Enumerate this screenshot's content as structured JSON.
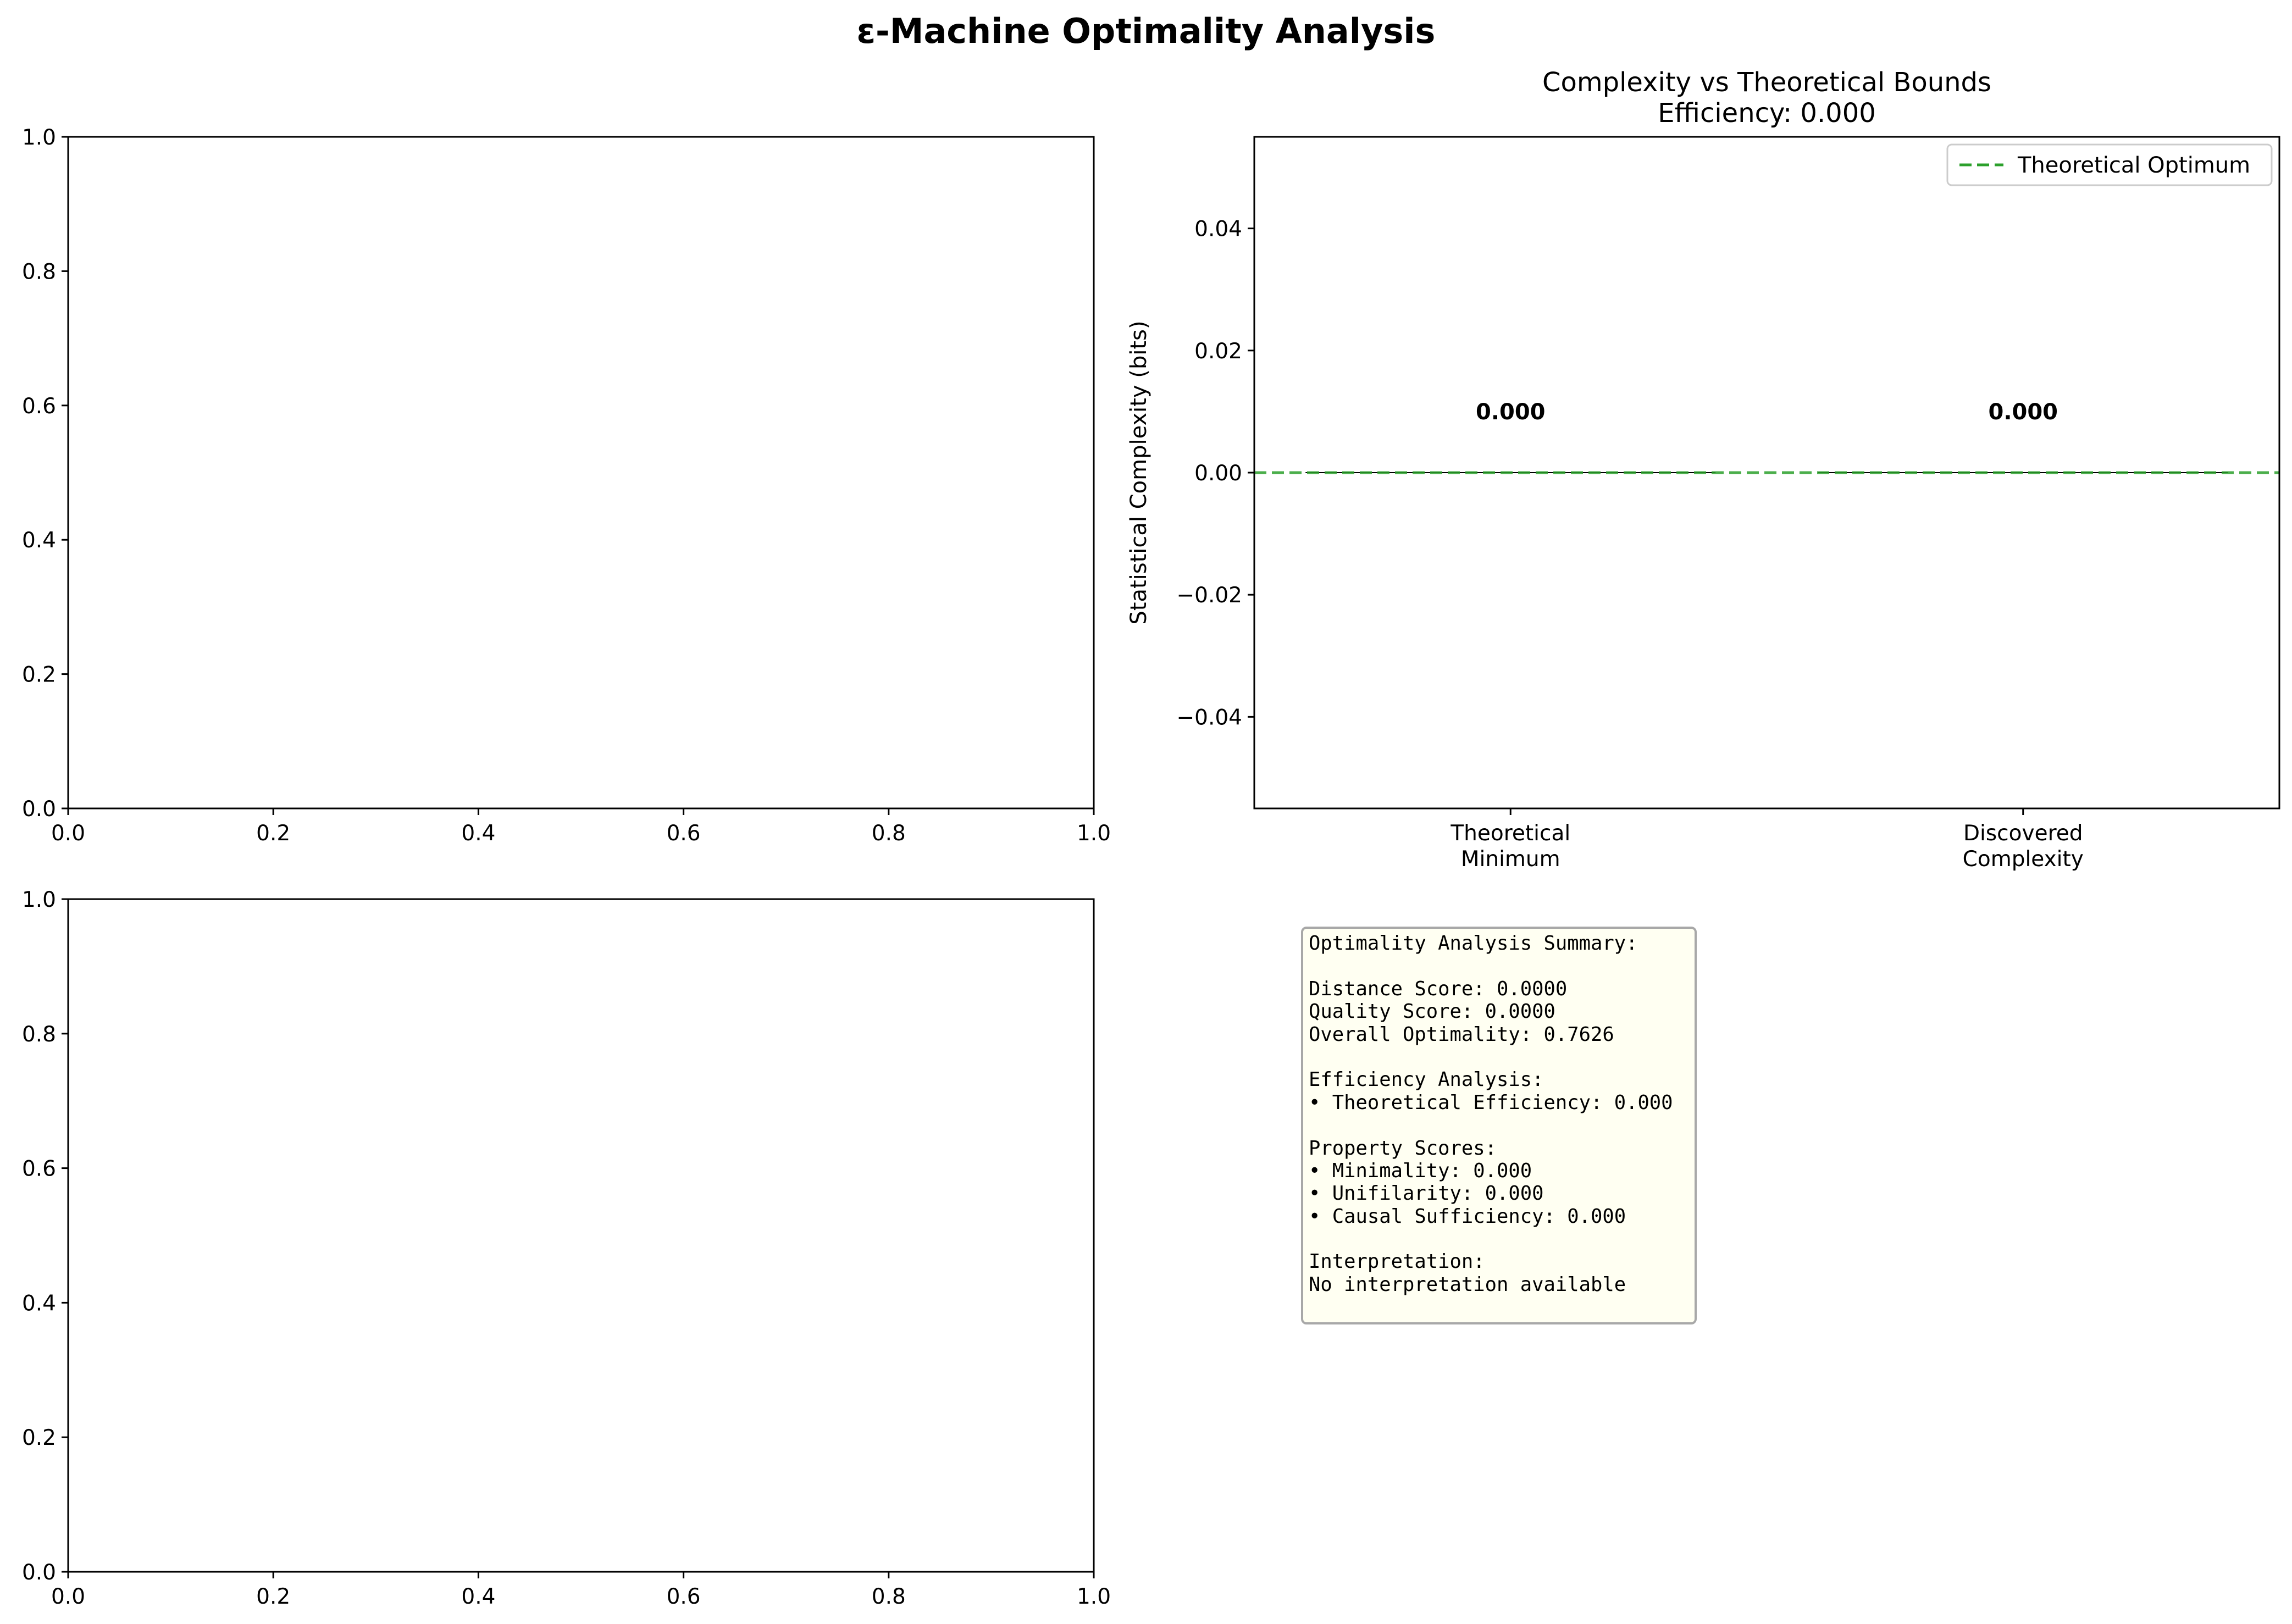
{
  "figure": {
    "suptitle": "ε-Machine Optimality Analysis"
  },
  "chart_data": [
    {
      "panel": "top-left",
      "type": "line",
      "empty": true,
      "xlim": [
        0,
        1
      ],
      "ylim": [
        0,
        1
      ],
      "xticks": [
        "0.0",
        "0.2",
        "0.4",
        "0.6",
        "0.8",
        "1.0"
      ],
      "yticks": [
        "0.0",
        "0.2",
        "0.4",
        "0.6",
        "0.8",
        "1.0"
      ],
      "series": []
    },
    {
      "panel": "top-right",
      "type": "bar",
      "title": "Complexity vs Theoretical Bounds",
      "subtitle": "Efficiency: 0.000",
      "ylabel": "Statistical Complexity (bits)",
      "categories": [
        [
          "Theoretical",
          "Minimum"
        ],
        [
          "Discovered",
          "Complexity"
        ]
      ],
      "values": [
        0.0,
        0.0
      ],
      "value_labels": [
        "0.000",
        "0.000"
      ],
      "ylim": [
        -0.055,
        0.055
      ],
      "yticks": [
        "−0.04",
        "−0.02",
        "0.00",
        "0.02",
        "0.04"
      ],
      "reference_line": {
        "label": "Theoretical Optimum",
        "y": 0.0,
        "style": "dashed",
        "color": "#2ca02c"
      },
      "legend": {
        "position": "upper right",
        "entries": [
          "Theoretical Optimum"
        ]
      }
    },
    {
      "panel": "bottom-left",
      "type": "line",
      "empty": true,
      "xlim": [
        0,
        1
      ],
      "ylim": [
        0,
        1
      ],
      "xticks": [
        "0.0",
        "0.2",
        "0.4",
        "0.6",
        "0.8",
        "1.0"
      ],
      "yticks": [
        "0.0",
        "0.2",
        "0.4",
        "0.6",
        "0.8",
        "1.0"
      ],
      "series": []
    }
  ],
  "summary": {
    "lines": [
      "Optimality Analysis Summary:",
      "",
      "Distance Score: 0.0000",
      "Quality Score: 0.0000",
      "Overall Optimality: 0.7626",
      "",
      "Efficiency Analysis:",
      "• Theoretical Efficiency: 0.000",
      "",
      "Property Scores:",
      "• Minimality: 0.000",
      "• Unifilarity: 0.000",
      "• Causal Sufficiency: 0.000",
      "",
      "Interpretation:",
      "No interpretation available"
    ],
    "bg_color": "#fffff2",
    "border_color": "#a8a8a8"
  },
  "colors": {
    "reference_line": "#2ca02c",
    "axes": "#000000"
  }
}
